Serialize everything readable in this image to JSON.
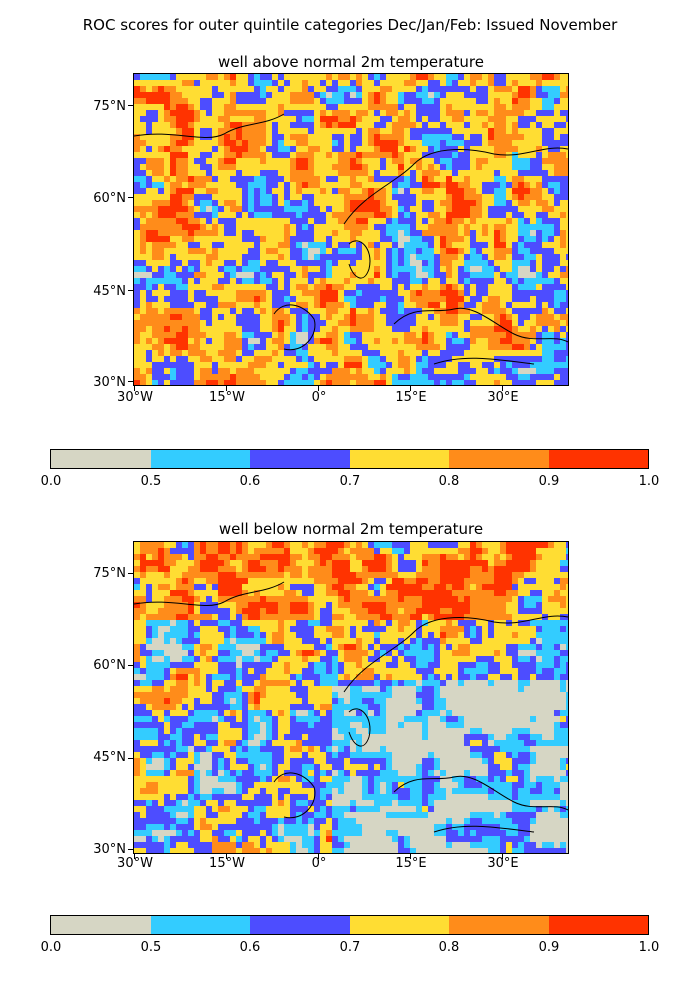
{
  "figure": {
    "title": "ROC scores for outer quintile categories Dec/Jan/Feb: Issued November"
  },
  "panels": [
    {
      "title": "well above normal 2m temperature",
      "lat_ticks": [
        "75°N",
        "60°N",
        "45°N",
        "30°N"
      ],
      "lon_ticks": [
        "30°W",
        "15°W",
        "0°",
        "15°E",
        "30°E"
      ]
    },
    {
      "title": "well below normal 2m temperature",
      "lat_ticks": [
        "75°N",
        "60°N",
        "45°N",
        "30°N"
      ],
      "lon_ticks": [
        "30°W",
        "15°W",
        "0°",
        "15°E",
        "30°E"
      ]
    }
  ],
  "colorbar": {
    "ticks": [
      "0.0",
      "0.5",
      "0.6",
      "0.7",
      "0.8",
      "0.9",
      "1.0"
    ],
    "colors": [
      "#d6d6c4",
      "#33ccff",
      "#4d4dff",
      "#ffdd33",
      "#ff8c1a",
      "#ff3300"
    ]
  },
  "chart_data": {
    "type": "heatmap",
    "title": "ROC scores for outer quintile categories Dec/Jan/Feb: Issued November",
    "region": {
      "lon_range": [
        -30,
        40
      ],
      "lat_range": [
        30,
        80
      ]
    },
    "levels": [
      0.0,
      0.5,
      0.6,
      0.7,
      0.8,
      0.9,
      1.0
    ],
    "panels": [
      {
        "title": "well above normal 2m temperature"
      },
      {
        "title": "well below normal 2m temperature"
      }
    ]
  }
}
